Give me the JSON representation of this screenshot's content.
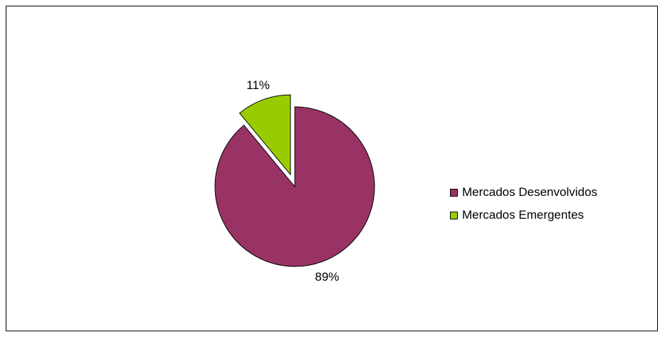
{
  "chart_data": {
    "type": "pie",
    "title": "",
    "slices": [
      {
        "name": "Mercados Desenvolvidos",
        "value": 89,
        "label": "89%",
        "color": "#993366"
      },
      {
        "name": "Mercados Emergentes",
        "value": 11,
        "label": "11%",
        "color": "#99CC00"
      }
    ],
    "exploded_slice": "Mercados Emergentes",
    "legend_position": "right"
  }
}
